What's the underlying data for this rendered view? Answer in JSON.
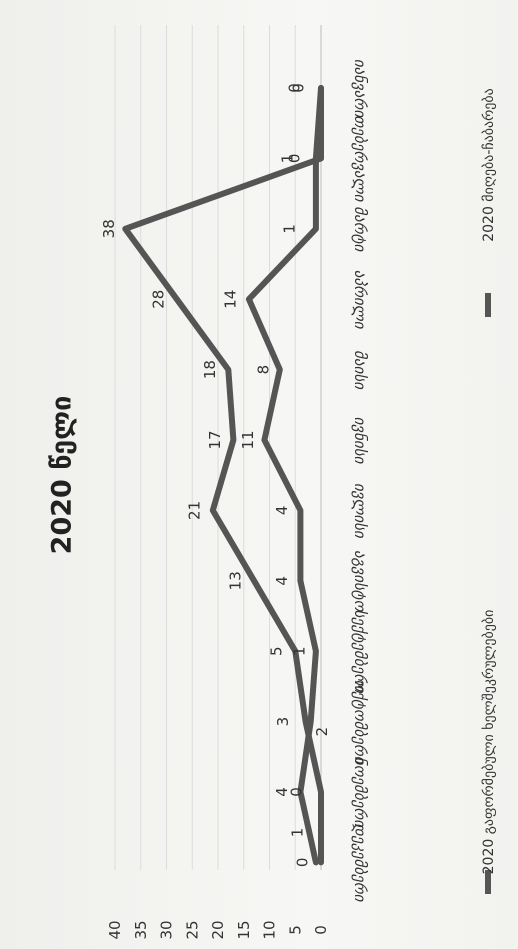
{
  "chart_data": {
    "type": "line",
    "title": "2020 წელი",
    "categories": [
      "იანვარი",
      "თებერვალი",
      "მარტი",
      "აპრილი",
      "მაისი",
      "ივნისი",
      "ივლისი",
      "აგვისტო",
      "სექტემბერი",
      "ოქტომბერი",
      "ნოემბერი",
      "დეკემბერი"
    ],
    "series": [
      {
        "name": "2020 გაფორმებული ხელშეკრულებები",
        "color": "#555555",
        "values": [
          0,
          0,
          38,
          28,
          18,
          17,
          21,
          13,
          5,
          3,
          0,
          0
        ]
      },
      {
        "name": "2020 მიღება-ჩაბარება",
        "color": "#555555",
        "values": [
          0,
          1,
          1,
          14,
          8,
          11,
          4,
          4,
          1,
          2,
          4,
          1
        ]
      }
    ],
    "y_ticks": [
      "0",
      "5",
      "10",
      "15",
      "20",
      "25",
      "30",
      "35",
      "40"
    ],
    "ylim": [
      0,
      40
    ],
    "grid": true,
    "legend_position": "bottom",
    "orientation": "rotated 90 degrees clockwise"
  }
}
